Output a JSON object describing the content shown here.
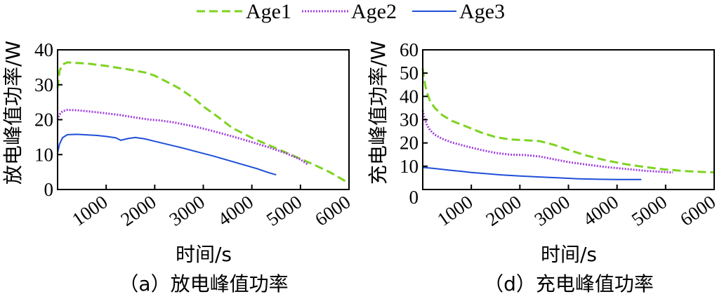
{
  "legend": [
    {
      "name": "Age1",
      "color": "#7ed321",
      "dash": "dashed"
    },
    {
      "name": "Age2",
      "color": "#a040e0",
      "dash": "dotted"
    },
    {
      "name": "Age3",
      "color": "#1f4fd8",
      "dash": "solid"
    }
  ],
  "chart_data": [
    {
      "type": "line",
      "caption": "（a）放电峰值功率",
      "xlabel": "时间/s",
      "ylabel": "放电峰值功率/W",
      "xlim": [
        0,
        6000
      ],
      "ylim": [
        0,
        40
      ],
      "xticks": [
        1000,
        2000,
        3000,
        4000,
        5000,
        6000
      ],
      "yticks": [
        0,
        10,
        20,
        30,
        40
      ],
      "series": [
        {
          "name": "Age1",
          "x": [
            0,
            40,
            100,
            200,
            300,
            600,
            1000,
            1500,
            1800,
            2000,
            2200,
            2500,
            2800,
            3000,
            3300,
            3600,
            4000,
            4400,
            4800,
            5200,
            5600,
            5900,
            6000
          ],
          "y": [
            29,
            34,
            35.8,
            36.4,
            36.3,
            36.1,
            35.4,
            34.3,
            33.5,
            32.6,
            31.2,
            29.0,
            26.2,
            23.8,
            20.8,
            17.6,
            14.8,
            12.4,
            10.0,
            7.6,
            5.0,
            2.6,
            1.6
          ]
        },
        {
          "name": "Age2",
          "x": [
            0,
            40,
            100,
            200,
            400,
            700,
            1000,
            1300,
            1600,
            1900,
            2100,
            2400,
            2800,
            3100,
            3500,
            3900,
            4300,
            4700,
            5000,
            5150
          ],
          "y": [
            20,
            21.5,
            22.4,
            22.8,
            22.7,
            22.3,
            21.8,
            21.3,
            20.6,
            20.0,
            19.8,
            19.2,
            18.1,
            17.1,
            15.6,
            14.0,
            12.3,
            10.4,
            8.6,
            7.2
          ]
        },
        {
          "name": "Age3",
          "x": [
            0,
            40,
            100,
            200,
            400,
            800,
            1000,
            1200,
            1300,
            1450,
            1600,
            1800,
            2000,
            2300,
            2600,
            2900,
            3200,
            3500,
            3800,
            4100,
            4350,
            4500
          ],
          "y": [
            10.5,
            13,
            14.8,
            15.7,
            15.8,
            15.5,
            15.2,
            14.8,
            14.1,
            14.6,
            14.9,
            14.5,
            13.8,
            12.8,
            11.8,
            10.7,
            9.6,
            8.4,
            7.2,
            6.0,
            4.8,
            4.2
          ]
        }
      ]
    },
    {
      "type": "line",
      "caption": "（d）充电峰值功率",
      "xlabel": "时间/s",
      "ylabel": "充电峰值功率/W",
      "xlim": [
        0,
        6000
      ],
      "ylim": [
        0,
        60
      ],
      "xticks": [
        1000,
        2000,
        3000,
        4000,
        5000,
        6000
      ],
      "yticks": [
        10,
        20,
        30,
        40,
        50,
        60
      ],
      "series": [
        {
          "name": "Age1",
          "x": [
            0,
            30,
            80,
            150,
            250,
            400,
            600,
            900,
            1200,
            1500,
            1800,
            2100,
            2400,
            2700,
            3000,
            3400,
            3800,
            4200,
            4600,
            5000,
            5400,
            5800,
            6000
          ],
          "y": [
            52,
            47,
            42,
            38,
            35,
            32,
            29.5,
            27,
            24.5,
            22.5,
            21.5,
            21.2,
            20.8,
            19.2,
            17.0,
            14.4,
            12.4,
            10.8,
            9.6,
            8.6,
            7.9,
            7.5,
            7.4
          ]
        },
        {
          "name": "Age2",
          "x": [
            0,
            30,
            80,
            150,
            250,
            400,
            600,
            900,
            1200,
            1500,
            1800,
            2100,
            2400,
            2700,
            3000,
            3400,
            3800,
            4200,
            4600,
            5000,
            5150
          ],
          "y": [
            34,
            31,
            28,
            25.5,
            23.5,
            21.8,
            20.2,
            18.5,
            17.0,
            15.7,
            15.0,
            14.8,
            14.2,
            13.0,
            11.8,
            10.6,
            9.6,
            8.8,
            8.0,
            7.5,
            7.3
          ]
        },
        {
          "name": "Age3",
          "x": [
            0,
            200,
            500,
            800,
            1000,
            1300,
            1600,
            2000,
            2400,
            2800,
            3200,
            3600,
            4000,
            4500
          ],
          "y": [
            9.5,
            9.1,
            8.4,
            7.8,
            7.3,
            6.8,
            6.3,
            5.8,
            5.4,
            5.0,
            4.6,
            4.4,
            4.3,
            4.3
          ]
        }
      ]
    }
  ]
}
